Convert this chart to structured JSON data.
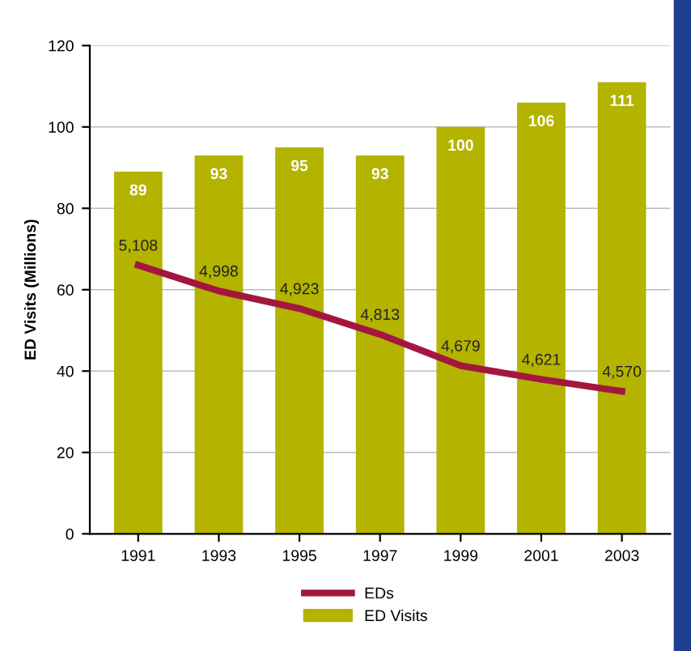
{
  "chart_data": {
    "type": "bar",
    "ylabel": "ED Visits (Millions)",
    "categories": [
      "1991",
      "1993",
      "1995",
      "1997",
      "1999",
      "2001",
      "2003"
    ],
    "series": [
      {
        "name": "ED Visits",
        "color": "#b3b300",
        "values": [
          89,
          93,
          95,
          93,
          100,
          106,
          111
        ]
      },
      {
        "name": "EDs",
        "type": "line",
        "axis": "y2",
        "color": "#a3173f",
        "values": [
          5108,
          4998,
          4923,
          4813,
          4679,
          4621,
          4570
        ],
        "value_labels": [
          "5,108",
          "4,998",
          "4,923",
          "4,813",
          "4,679",
          "4,621",
          "4,570"
        ]
      }
    ],
    "ylim": [
      0,
      120
    ],
    "yticks": [
      0,
      20,
      40,
      60,
      80,
      100,
      120
    ],
    "y2lim": [
      3962,
      6045
    ],
    "grid": "y",
    "legend": "bottom",
    "data_labels": true,
    "marker": "none",
    "line_style": "solid"
  }
}
